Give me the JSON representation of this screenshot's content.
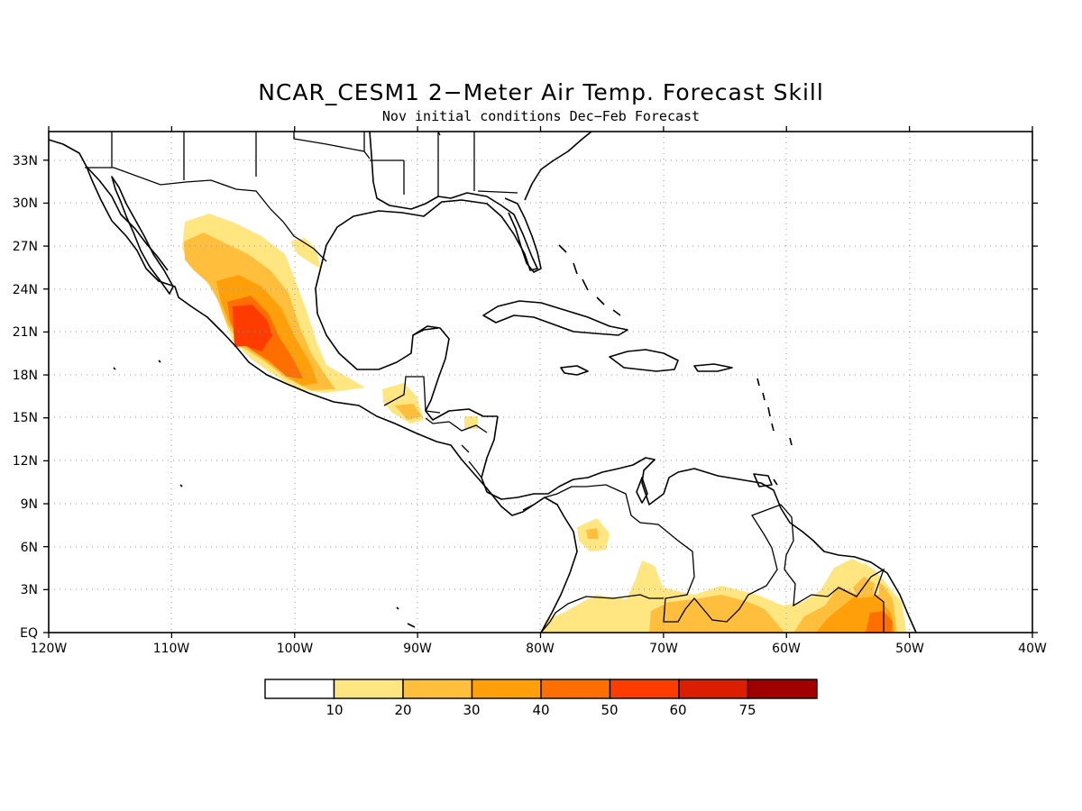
{
  "title": "NCAR_CESM1 2−Meter Air Temp. Forecast Skill",
  "subtitle": "Nov initial conditions  Dec−Feb Forecast",
  "lon_ticks": [
    "120W",
    "110W",
    "100W",
    "90W",
    "80W",
    "70W",
    "60W",
    "50W",
    "40W"
  ],
  "lat_ticks": [
    "EQ",
    "3N",
    "6N",
    "9N",
    "12N",
    "15N",
    "18N",
    "21N",
    "24N",
    "27N",
    "30N",
    "33N"
  ],
  "map_extent": {
    "lon_min": -120,
    "lon_max": -40,
    "lat_min": 0,
    "lat_max": 35
  },
  "gridlines": true,
  "colorbar": {
    "labels": [
      "10",
      "20",
      "30",
      "40",
      "50",
      "60",
      "75"
    ],
    "colors": [
      "#ffffff",
      "#ffe680",
      "#ffbe3c",
      "#ffa00a",
      "#ff6e00",
      "#ff3c00",
      "#dc1e00",
      "#a00000"
    ]
  },
  "skill_regions": [
    {
      "name": "western-mexico",
      "levels": [
        1,
        2,
        3,
        4,
        5
      ]
    },
    {
      "name": "guatemala",
      "levels": [
        1,
        2
      ]
    },
    {
      "name": "honduras",
      "levels": [
        1
      ]
    },
    {
      "name": "colombia",
      "levels": [
        1,
        2
      ]
    },
    {
      "name": "amazon-north",
      "levels": [
        1,
        2
      ]
    },
    {
      "name": "guiana-amapa",
      "levels": [
        1,
        2,
        3,
        4
      ]
    }
  ]
}
